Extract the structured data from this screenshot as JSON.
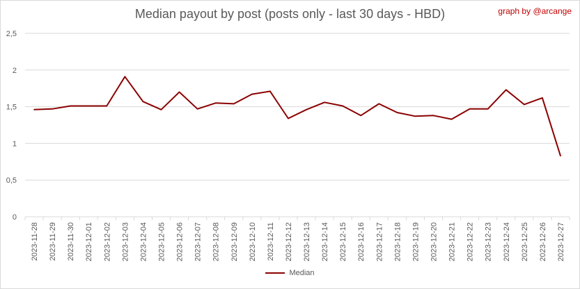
{
  "title": "Median payout by post (posts only - last 30 days - HBD)",
  "credit": "graph by @arcange",
  "colors": {
    "series": "#8b0000",
    "credit": "#c00000",
    "grid": "#d9d9d9",
    "text": "#595959"
  },
  "chart_data": {
    "type": "line",
    "title": "Median payout by post (posts only - last 30 days - HBD)",
    "xlabel": "",
    "ylabel": "",
    "ylim": [
      0,
      2.5
    ],
    "yticks": [
      "0",
      "0,5",
      "1",
      "1,5",
      "2",
      "2,5"
    ],
    "grid": true,
    "legend_position": "bottom",
    "categories": [
      "2023-11-28",
      "2023-11-29",
      "2023-11-30",
      "2023-12-01",
      "2023-12-02",
      "2023-12-03",
      "2023-12-04",
      "2023-12-05",
      "2023-12-06",
      "2023-12-07",
      "2023-12-08",
      "2023-12-09",
      "2023-12-10",
      "2023-12-11",
      "2023-12-12",
      "2023-12-13",
      "2023-12-14",
      "2023-12-15",
      "2023-12-16",
      "2023-12-17",
      "2023-12-18",
      "2023-12-19",
      "2023-12-20",
      "2023-12-21",
      "2023-12-22",
      "2023-12-23",
      "2023-12-24",
      "2023-12-25",
      "2023-12-26",
      "2023-12-27"
    ],
    "series": [
      {
        "name": "Median",
        "values": [
          1.46,
          1.47,
          1.51,
          1.51,
          1.51,
          1.91,
          1.57,
          1.46,
          1.7,
          1.47,
          1.55,
          1.54,
          1.67,
          1.71,
          1.34,
          1.46,
          1.56,
          1.51,
          1.38,
          1.54,
          1.42,
          1.37,
          1.38,
          1.33,
          1.47,
          1.47,
          1.73,
          1.53,
          1.62,
          0.83
        ]
      }
    ]
  }
}
